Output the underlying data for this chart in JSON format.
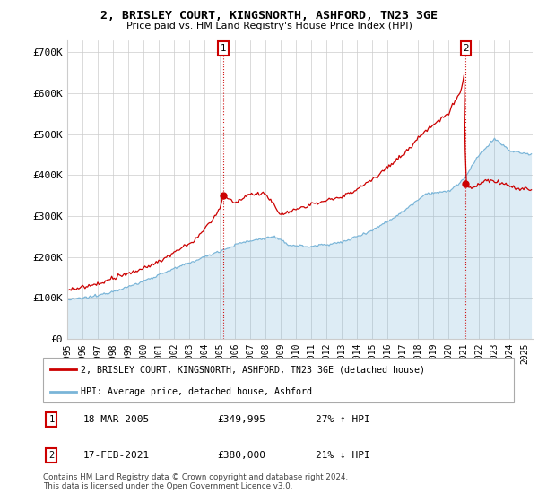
{
  "title": "2, BRISLEY COURT, KINGSNORTH, ASHFORD, TN23 3GE",
  "subtitle": "Price paid vs. HM Land Registry's House Price Index (HPI)",
  "ylim": [
    0,
    730000
  ],
  "xlim_start": 1995.0,
  "xlim_end": 2025.5,
  "legend_line1": "2, BRISLEY COURT, KINGSNORTH, ASHFORD, TN23 3GE (detached house)",
  "legend_line2": "HPI: Average price, detached house, Ashford",
  "sale1_date": "18-MAR-2005",
  "sale1_price": "£349,995",
  "sale1_hpi": "27% ↑ HPI",
  "sale1_x": 2005.21,
  "sale1_y": 349995,
  "sale2_date": "17-FEB-2021",
  "sale2_price": "£380,000",
  "sale2_hpi": "21% ↓ HPI",
  "sale2_x": 2021.12,
  "sale2_y": 380000,
  "hpi_color": "#7ab5d8",
  "hpi_fill_color": "#d6eaf8",
  "price_color": "#cc0000",
  "marker_box_color": "#cc0000",
  "footer": "Contains HM Land Registry data © Crown copyright and database right 2024.\nThis data is licensed under the Open Government Licence v3.0.",
  "background_color": "#ffffff",
  "grid_color": "#cccccc",
  "chart_bg": "#eaf4fb"
}
